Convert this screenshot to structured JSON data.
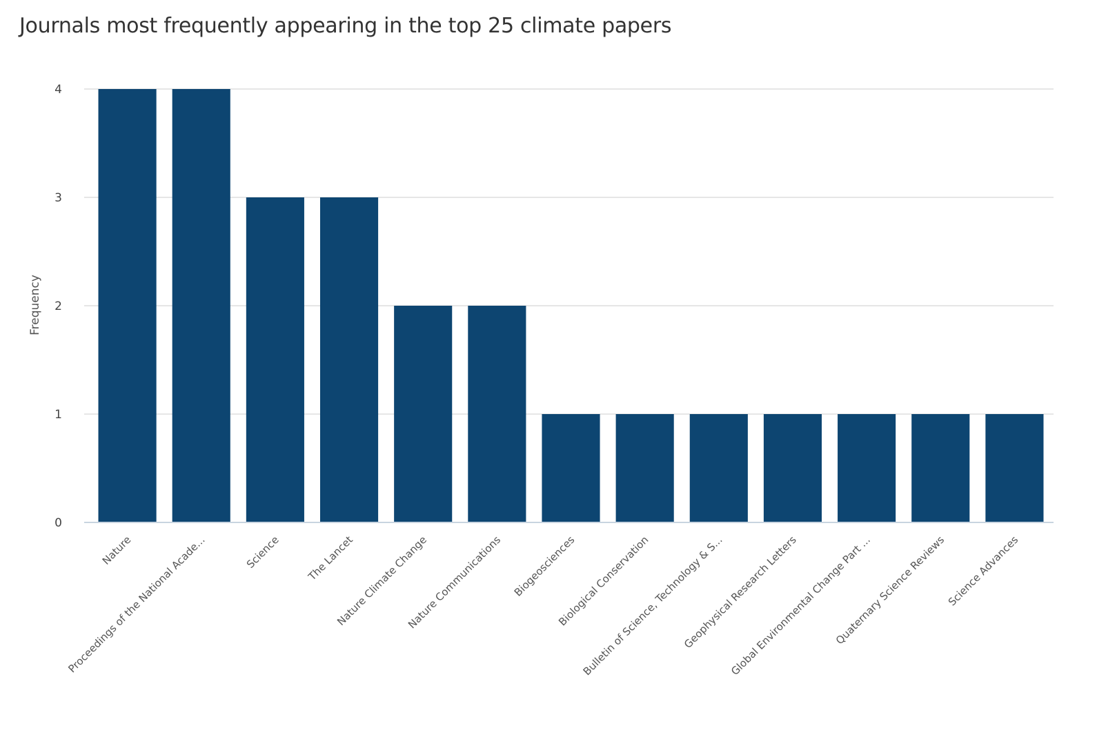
{
  "chart_data": {
    "type": "bar",
    "title": "Journals most frequently appearing in the top 25 climate papers",
    "xlabel": "",
    "ylabel": "Frequency",
    "ylim": [
      0,
      4
    ],
    "yticks": [
      0,
      1,
      2,
      3,
      4
    ],
    "grid": true,
    "legend": "none",
    "bar_color": "#0d4571",
    "gridline_color": "#dddddd",
    "categories": [
      "Nature",
      "Proceedings of the National Acade...",
      "Science",
      "The Lancet",
      "Nature Climate Change",
      "Nature Communications",
      "Biogeosciences",
      "Biological Conservation",
      "Bulletin of Science, Technology & S...",
      "Geophysical Research Letters",
      "Global Environmental Change Part ...",
      "Quaternary Science Reviews",
      "Science Advances"
    ],
    "values": [
      4,
      4,
      3,
      3,
      2,
      2,
      1,
      1,
      1,
      1,
      1,
      1,
      1
    ]
  }
}
